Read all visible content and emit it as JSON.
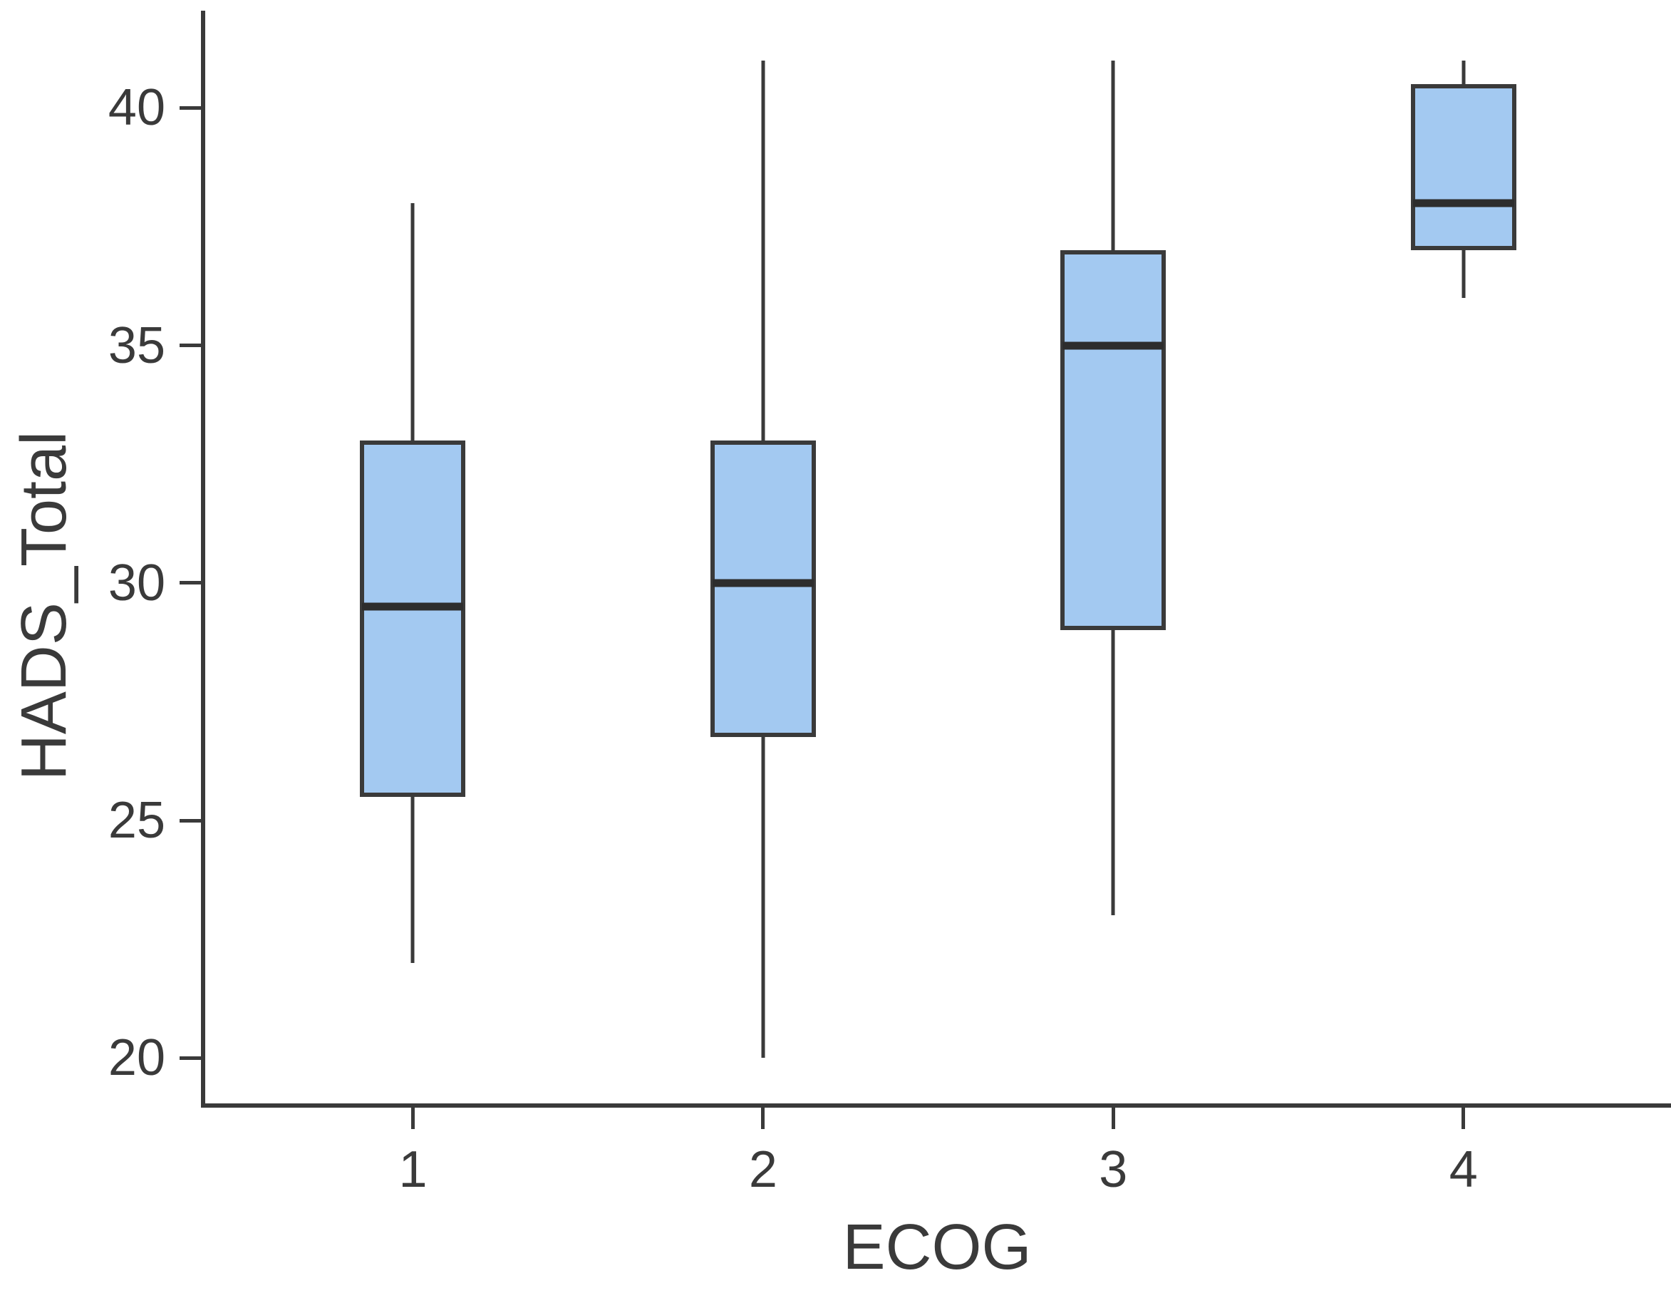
{
  "chart_data": {
    "type": "boxplot",
    "title": "",
    "xlabel": "ECOG",
    "ylabel": "HADS_Total",
    "categories": [
      "1",
      "2",
      "3",
      "4"
    ],
    "yticks": [
      20,
      25,
      30,
      35,
      40
    ],
    "ylim": [
      19,
      42
    ],
    "grid": false,
    "legend": "none",
    "whisker_caps": false,
    "outliers": [],
    "boxes": [
      {
        "category": "1",
        "whisker_low": 22,
        "q1": 25.5,
        "median": 29.5,
        "q3": 33,
        "whisker_high": 38
      },
      {
        "category": "2",
        "whisker_low": 20,
        "q1": 26.75,
        "median": 30,
        "q3": 33,
        "whisker_high": 41
      },
      {
        "category": "3",
        "whisker_low": 23,
        "q1": 29,
        "median": 35,
        "q3": 37,
        "whisker_high": 41
      },
      {
        "category": "4",
        "whisker_low": 36,
        "q1": 37,
        "median": 38,
        "q3": 40.5,
        "whisker_high": 41
      }
    ],
    "colors": {
      "box_fill": "#a3c9f1",
      "line": "#3a3a3a",
      "median_line": "#2d2d2d",
      "background": "#ffffff"
    }
  }
}
